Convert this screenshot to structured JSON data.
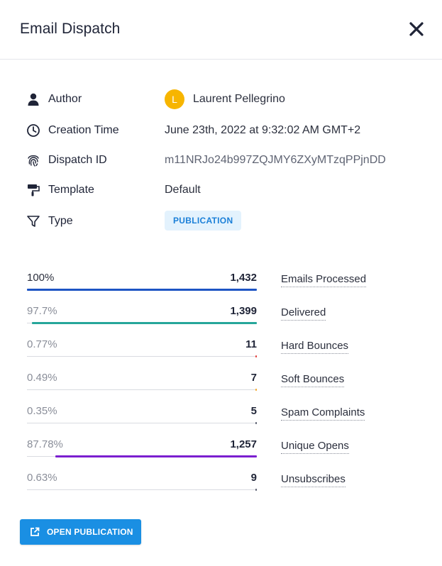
{
  "dialog": {
    "title": "Email Dispatch",
    "close_icon": "close-icon"
  },
  "details": {
    "author": {
      "label": "Author",
      "icon": "person-icon",
      "avatar_initial": "L",
      "avatar_color": "#f7b500",
      "value": "Laurent Pellegrino"
    },
    "creation_time": {
      "label": "Creation Time",
      "icon": "clock-icon",
      "value": "June 23th, 2022 at 9:32:02 AM GMT+2"
    },
    "dispatch_id": {
      "label": "Dispatch ID",
      "icon": "fingerprint-icon",
      "value": "m11NRJo24b997ZQJMY6ZXyMTzqPPjnDD"
    },
    "template": {
      "label": "Template",
      "icon": "paint-roller-icon",
      "value": "Default"
    },
    "type": {
      "label": "Type",
      "icon": "filter-icon",
      "value": "PUBLICATION"
    }
  },
  "stats": [
    {
      "percent": "100%",
      "count": "1,432",
      "label": "Emails Processed",
      "fraction": 1.0,
      "color": "#1e55c4"
    },
    {
      "percent": "97.7%",
      "count": "1,399",
      "label": "Delivered",
      "fraction": 0.977,
      "color": "#26a69a"
    },
    {
      "percent": "0.77%",
      "count": "11",
      "label": "Hard Bounces",
      "fraction": 0.0077,
      "color": "#e53935"
    },
    {
      "percent": "0.49%",
      "count": "7",
      "label": "Soft Bounces",
      "fraction": 0.0049,
      "color": "#f5a623"
    },
    {
      "percent": "0.35%",
      "count": "5",
      "label": "Spam Complaints",
      "fraction": 0.0035,
      "color": "#555a6b"
    },
    {
      "percent": "87.78%",
      "count": "1,257",
      "label": "Unique Opens",
      "fraction": 0.8778,
      "color": "#7b1fd0"
    },
    {
      "percent": "0.63%",
      "count": "9",
      "label": "Unsubscribes",
      "fraction": 0.0063,
      "color": "#555a6b"
    }
  ],
  "actions": {
    "open_publication": {
      "label": "OPEN PUBLICATION",
      "icon": "external-link-icon",
      "color": "#1a8fe3"
    }
  }
}
